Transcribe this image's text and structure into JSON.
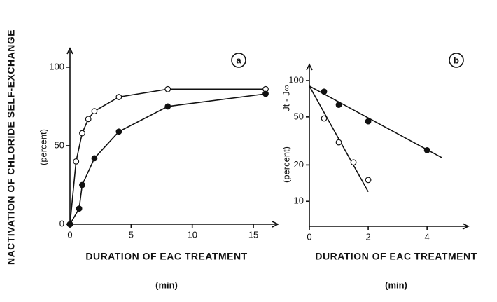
{
  "figure_ylabel": "NACTIVATION OF CHLORIDE SELF-EXCHANGE",
  "chart_data": [
    {
      "type": "scatter",
      "panel": "a",
      "ylabel": "(percent)",
      "xlabel": "DURATION OF EAC TREATMENT",
      "xunit": "(min)",
      "xlim": [
        0,
        17
      ],
      "ylim": [
        0,
        112
      ],
      "xticks": [
        0,
        5,
        10,
        15
      ],
      "yticks": [
        0,
        50,
        100
      ],
      "log_y": false,
      "series": [
        {
          "marker": "open",
          "color": "#111111",
          "x": [
            0,
            0.5,
            1,
            1.5,
            2,
            4,
            8,
            16
          ],
          "values": [
            0,
            40,
            58,
            67,
            72,
            81,
            86,
            86
          ]
        },
        {
          "marker": "filled",
          "color": "#111111",
          "x": [
            0,
            0.75,
            1,
            2,
            4,
            8,
            16
          ],
          "values": [
            0,
            10,
            25,
            42,
            59,
            75,
            83
          ]
        }
      ]
    },
    {
      "type": "scatter",
      "panel": "b",
      "ylabel": "Jt - J∞",
      "ylabel2": "(percent)",
      "xlabel": "DURATION OF EAC TREATMENT",
      "xunit": "(min)",
      "xlim": [
        0,
        5.4
      ],
      "ylim": [
        6.2,
        136
      ],
      "xticks": [
        0,
        2,
        4
      ],
      "yticks": [
        10,
        20,
        50,
        100
      ],
      "log_y": true,
      "series": [
        {
          "marker": "filled",
          "color": "#111111",
          "x": [
            0.5,
            1,
            2,
            4
          ],
          "values": [
            81,
            63,
            46,
            26.5
          ],
          "fit_x": [
            0,
            4.5
          ],
          "fit_values": [
            90,
            23
          ]
        },
        {
          "marker": "open",
          "color": "#111111",
          "x": [
            0.5,
            1,
            1.5,
            2
          ],
          "values": [
            48.6,
            30.8,
            21,
            15
          ],
          "fit_x": [
            0,
            2
          ],
          "fit_values": [
            90,
            12
          ]
        }
      ]
    }
  ]
}
